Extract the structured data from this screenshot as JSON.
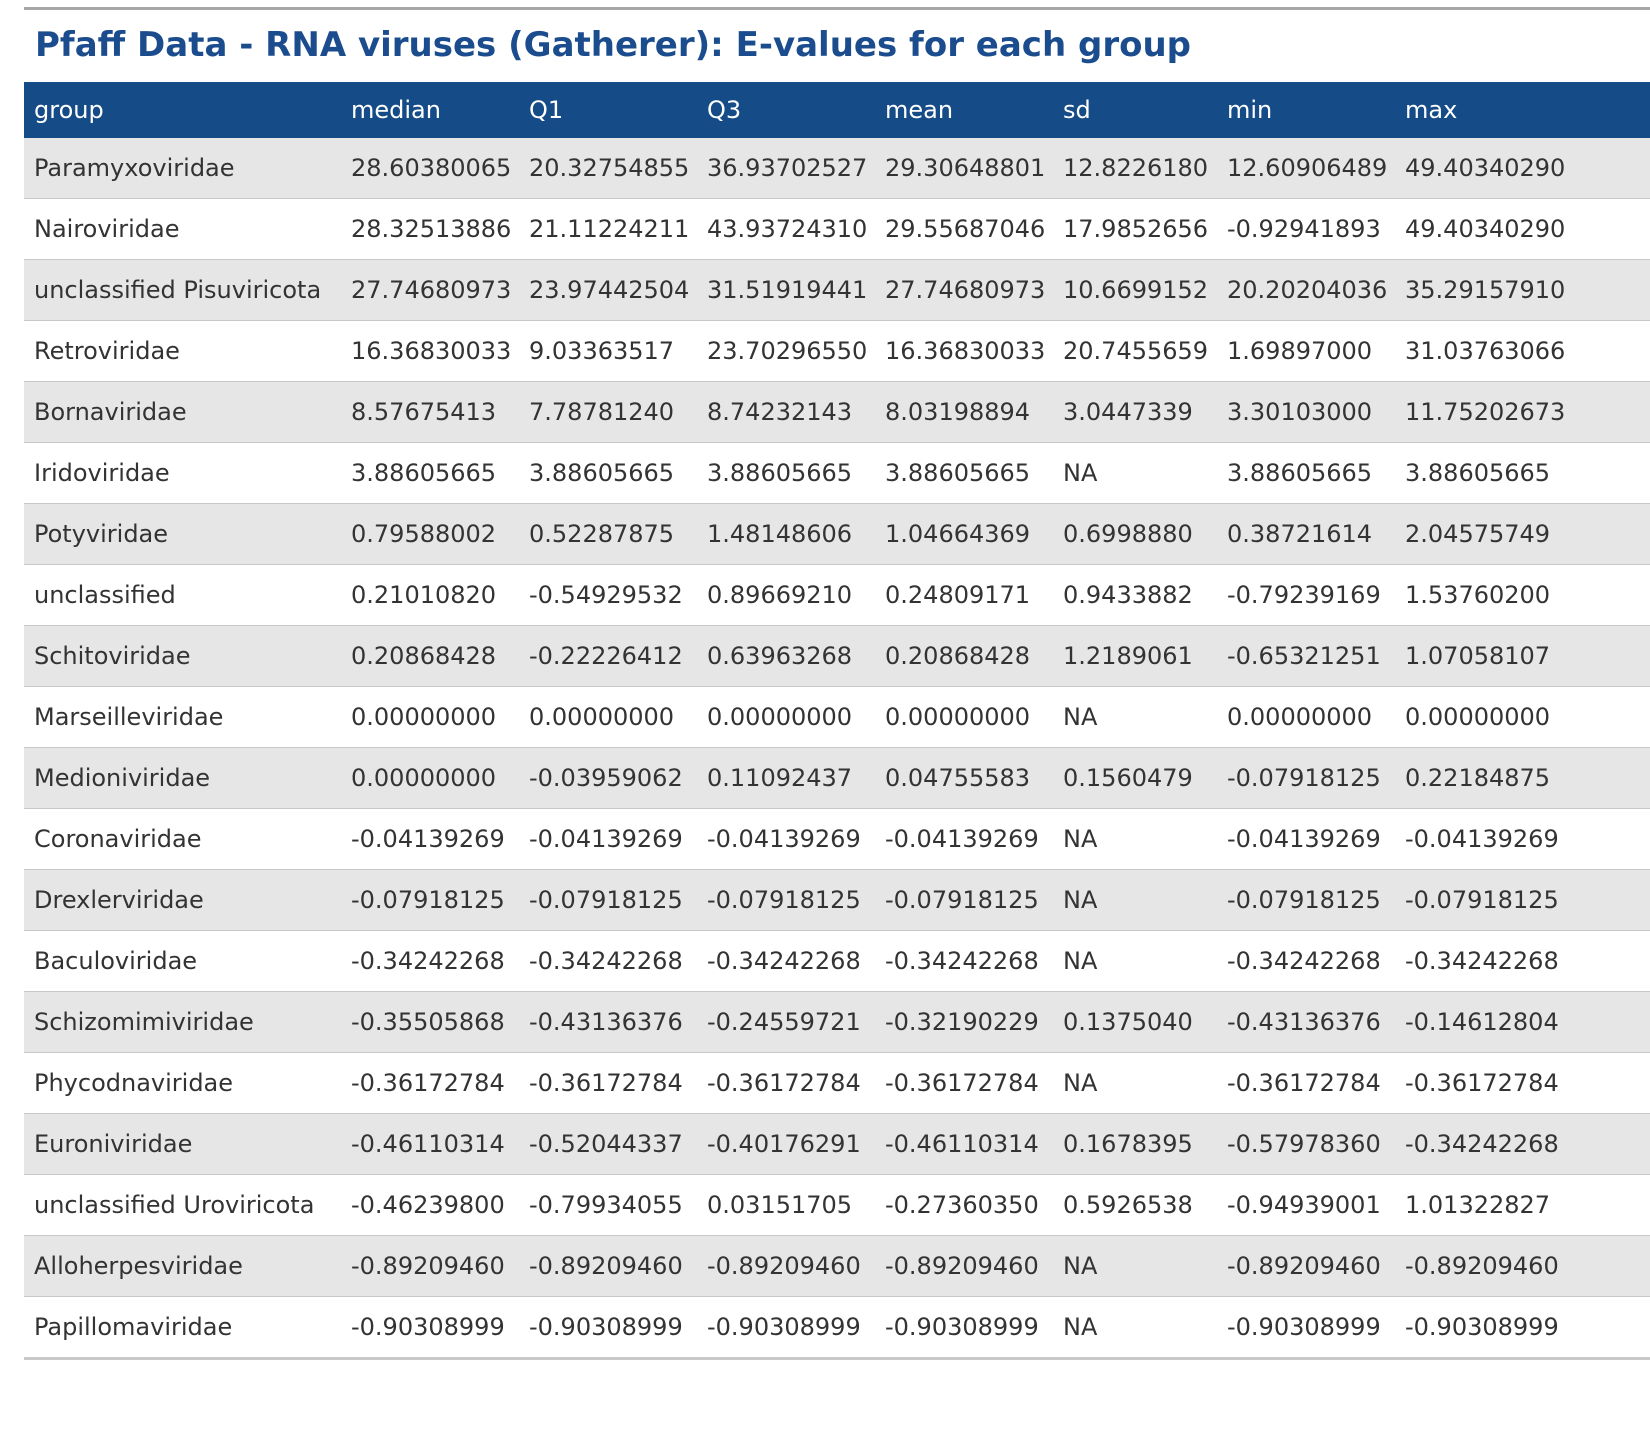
{
  "page": {
    "title": "Pfaff Data - RNA viruses (Gatherer): E-values for each group"
  },
  "table": {
    "columns": [
      "group",
      "median",
      "Q1",
      "Q3",
      "mean",
      "sd",
      "min",
      "max"
    ],
    "rows": [
      [
        "Paramyxoviridae",
        "28.60380065",
        "20.32754855",
        "36.93702527",
        "29.30648801",
        "12.8226180",
        "12.60906489",
        "49.40340290"
      ],
      [
        "Nairoviridae",
        "28.32513886",
        "21.11224211",
        "43.93724310",
        "29.55687046",
        "17.9852656",
        "-0.92941893",
        "49.40340290"
      ],
      [
        "unclassified Pisuviricota",
        "27.74680973",
        "23.97442504",
        "31.51919441",
        "27.74680973",
        "10.6699152",
        "20.20204036",
        "35.29157910"
      ],
      [
        "Retroviridae",
        "16.36830033",
        "9.03363517",
        "23.70296550",
        "16.36830033",
        "20.7455659",
        "1.69897000",
        "31.03763066"
      ],
      [
        "Bornaviridae",
        "8.57675413",
        "7.78781240",
        "8.74232143",
        "8.03198894",
        "3.0447339",
        "3.30103000",
        "11.75202673"
      ],
      [
        "Iridoviridae",
        "3.88605665",
        "3.88605665",
        "3.88605665",
        "3.88605665",
        "NA",
        "3.88605665",
        "3.88605665"
      ],
      [
        "Potyviridae",
        "0.79588002",
        "0.52287875",
        "1.48148606",
        "1.04664369",
        "0.6998880",
        "0.38721614",
        "2.04575749"
      ],
      [
        "unclassified",
        "0.21010820",
        "-0.54929532",
        "0.89669210",
        "0.24809171",
        "0.9433882",
        "-0.79239169",
        "1.53760200"
      ],
      [
        "Schitoviridae",
        "0.20868428",
        "-0.22226412",
        "0.63963268",
        "0.20868428",
        "1.2189061",
        "-0.65321251",
        "1.07058107"
      ],
      [
        "Marseilleviridae",
        "0.00000000",
        "0.00000000",
        "0.00000000",
        "0.00000000",
        "NA",
        "0.00000000",
        "0.00000000"
      ],
      [
        "Medioniviridae",
        "0.00000000",
        "-0.03959062",
        "0.11092437",
        "0.04755583",
        "0.1560479",
        "-0.07918125",
        "0.22184875"
      ],
      [
        "Coronaviridae",
        "-0.04139269",
        "-0.04139269",
        "-0.04139269",
        "-0.04139269",
        "NA",
        "-0.04139269",
        "-0.04139269"
      ],
      [
        "Drexlerviridae",
        "-0.07918125",
        "-0.07918125",
        "-0.07918125",
        "-0.07918125",
        "NA",
        "-0.07918125",
        "-0.07918125"
      ],
      [
        "Baculoviridae",
        "-0.34242268",
        "-0.34242268",
        "-0.34242268",
        "-0.34242268",
        "NA",
        "-0.34242268",
        "-0.34242268"
      ],
      [
        "Schizomimiviridae",
        "-0.35505868",
        "-0.43136376",
        "-0.24559721",
        "-0.32190229",
        "0.1375040",
        "-0.43136376",
        "-0.14612804"
      ],
      [
        "Phycodnaviridae",
        "-0.36172784",
        "-0.36172784",
        "-0.36172784",
        "-0.36172784",
        "NA",
        "-0.36172784",
        "-0.36172784"
      ],
      [
        "Euroniviridae",
        "-0.46110314",
        "-0.52044337",
        "-0.40176291",
        "-0.46110314",
        "0.1678395",
        "-0.57978360",
        "-0.34242268"
      ],
      [
        "unclassified Uroviricota",
        "-0.46239800",
        "-0.79934055",
        "0.03151705",
        "-0.27360350",
        "0.5926538",
        "-0.94939001",
        "1.01322827"
      ],
      [
        "Alloherpesviridae",
        "-0.89209460",
        "-0.89209460",
        "-0.89209460",
        "-0.89209460",
        "NA",
        "-0.89209460",
        "-0.89209460"
      ],
      [
        "Papillomaviridae",
        "-0.90308999",
        "-0.90308999",
        "-0.90308999",
        "-0.90308999",
        "NA",
        "-0.90308999",
        "-0.90308999"
      ]
    ]
  },
  "colors": {
    "title": "#1b4c8d",
    "header_background": "#154b86",
    "header_text": "#ffffff",
    "stripe": "#e6e6e6",
    "row_border": "#c9c9c9"
  }
}
